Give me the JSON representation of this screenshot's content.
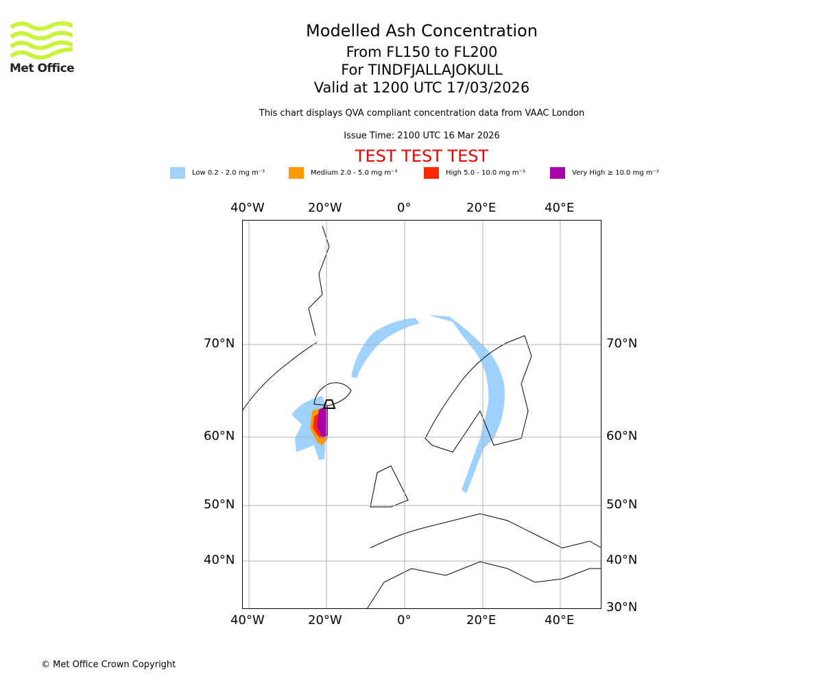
{
  "logo": {
    "text": "Met Office",
    "color": "#c8f53c"
  },
  "title": {
    "main": "Modelled Ash Concentration",
    "levels": "From FL150 to FL200",
    "volcano": "For TINDFJALLAJOKULL",
    "valid": "Valid at 1200 UTC 17/03/2026"
  },
  "subtitle": "This chart displays QVA compliant concentration data from VAAC London",
  "issue_time": "Issue Time: 2100 UTC 16 Mar 2026",
  "test_banner": "TEST TEST TEST",
  "legend": [
    {
      "label": "Low 0.2 - 2.0 mg m⁻³",
      "color": "#a0d2ff"
    },
    {
      "label": "Medium 2.0 - 5.0 mg m⁻³",
      "color": "#ff9900"
    },
    {
      "label": "High 5.0 - 10.0 mg m⁻³",
      "color": "#ff2800"
    },
    {
      "label": "Very High ≥ 10.0 mg m⁻³",
      "color": "#aa00aa"
    }
  ],
  "axes": {
    "lon_labels": [
      "40°W",
      "20°W",
      "0°",
      "20°E",
      "40°E"
    ],
    "lat_labels": [
      "70°N",
      "60°N",
      "50°N",
      "40°N",
      "30°N"
    ]
  },
  "copyright": "© Met Office Crown Copyright"
}
